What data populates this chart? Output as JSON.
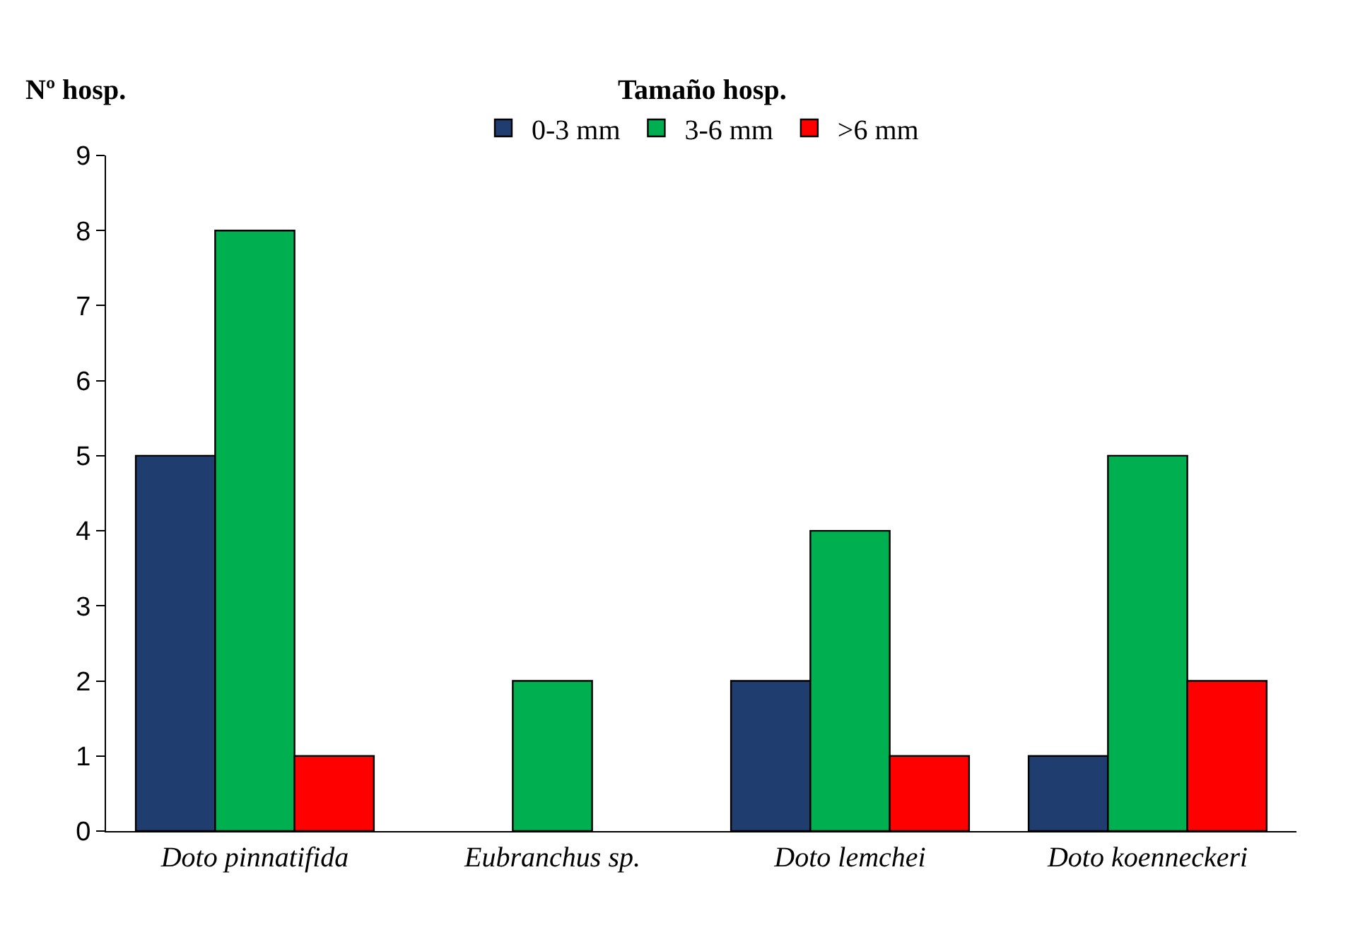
{
  "chart_data": {
    "type": "bar",
    "ylabel": "Nº hosp.",
    "legend_title": "Tamaño hosp.",
    "categories": [
      "Doto pinnatifida",
      "Eubranchus sp.",
      "Doto lemchei",
      "Doto koenneckeri"
    ],
    "series": [
      {
        "name": "0-3 mm",
        "color": "#1f3d6e",
        "values": [
          5,
          null,
          2,
          1
        ]
      },
      {
        "name": "3-6 mm",
        "color": "#00b050",
        "values": [
          8,
          2,
          4,
          5
        ]
      },
      {
        "name": ">6 mm",
        "color": "#ff0000",
        "values": [
          1,
          null,
          1,
          2
        ]
      }
    ],
    "ylim": [
      0,
      9
    ],
    "yticks": [
      0,
      1,
      2,
      3,
      4,
      5,
      6,
      7,
      8,
      9
    ],
    "grid": false,
    "legend": "top"
  }
}
